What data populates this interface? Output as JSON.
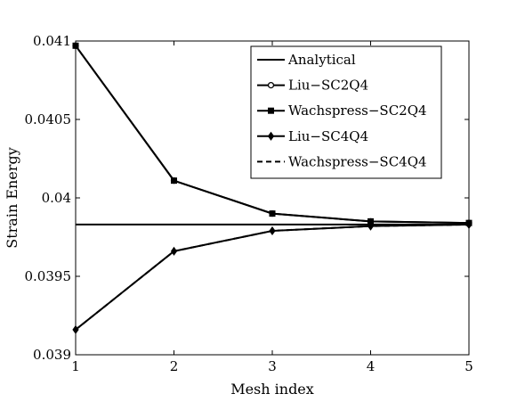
{
  "chart_data": {
    "type": "line",
    "xlabel": "Mesh index",
    "ylabel": "Strain Energy",
    "xlim": [
      1,
      5
    ],
    "ylim": [
      0.039,
      0.041
    ],
    "x_ticks": [
      "1",
      "2",
      "3",
      "4",
      "5"
    ],
    "y_ticks": [
      "0.039",
      "0.0395",
      "0.04",
      "0.0405",
      "0.041"
    ],
    "grid": false,
    "legend_position": "top-right",
    "x": [
      1,
      2,
      3,
      4,
      5
    ],
    "series": [
      {
        "name": "Analytical",
        "style": "solid",
        "marker": "none",
        "values": [
          0.03983,
          0.03983,
          0.03983,
          0.03983,
          0.03983
        ]
      },
      {
        "name": "Liu−SC2Q4",
        "style": "solid",
        "marker": "circle",
        "values": [
          0.04097,
          0.04011,
          0.0399,
          0.03985,
          0.03984
        ]
      },
      {
        "name": "Wachspress−SC2Q4",
        "style": "solid",
        "marker": "square",
        "values": [
          0.04097,
          0.04011,
          0.0399,
          0.03985,
          0.03984
        ]
      },
      {
        "name": "Liu−SC4Q4",
        "style": "solid",
        "marker": "diamond",
        "values": [
          0.03916,
          0.03966,
          0.03979,
          0.03982,
          0.03983
        ]
      },
      {
        "name": "Wachspress−SC4Q4",
        "style": "dashed",
        "marker": "none",
        "values": [
          0.03916,
          0.03966,
          0.03979,
          0.03982,
          0.03983
        ]
      }
    ]
  }
}
